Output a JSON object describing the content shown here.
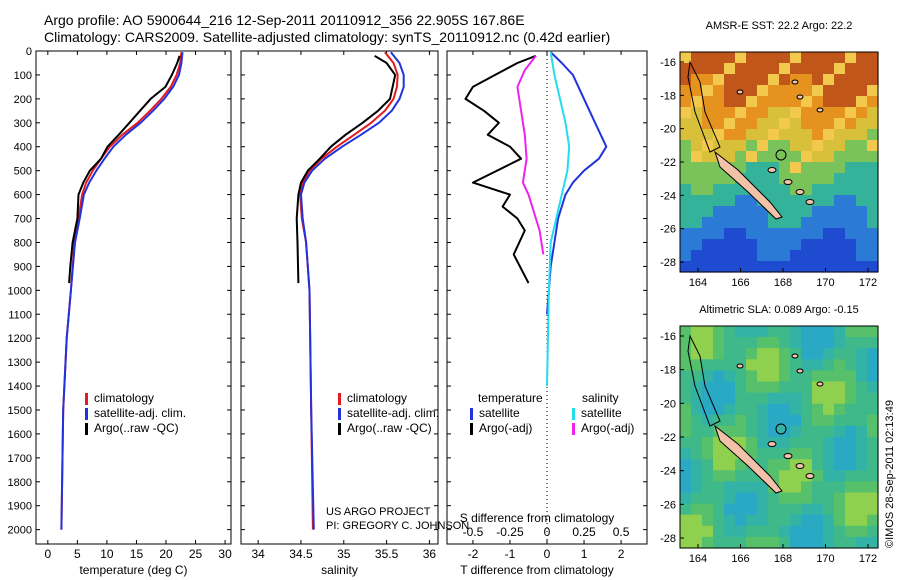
{
  "header": {
    "line1": "Argo profile: AO 5900644_216 12-Sep-2011 20110912_356 22.905S 167.86E",
    "line2": "Climatology: CARS2009. Satellite-adjusted climatology: synTS_20110912.nc (0.42d earlier)"
  },
  "colors": {
    "climatology": "#e41a1c",
    "satellite": "#2233dd",
    "argo": "#000000",
    "sat_salinity": "#22ddee",
    "argo_salinity": "#ee22ee"
  },
  "chart_data": [
    {
      "type": "line",
      "id": "temperature",
      "xlabel": "temperature (deg C)",
      "ylabel": "",
      "xlim": [
        -2,
        31
      ],
      "ylim": [
        0,
        2060
      ],
      "x_ticks": [
        "0",
        "5",
        "10",
        "15",
        "20",
        "25",
        "30"
      ],
      "x_tick_values": [
        0,
        5,
        10,
        15,
        20,
        25,
        30
      ],
      "y_ticks": [
        "0",
        "100",
        "200",
        "300",
        "400",
        "500",
        "600",
        "700",
        "800",
        "900",
        "1000",
        "1100",
        "1200",
        "1300",
        "1400",
        "1500",
        "1600",
        "1700",
        "1800",
        "1900",
        "2000"
      ],
      "y_tick_values": [
        0,
        100,
        200,
        300,
        400,
        500,
        600,
        700,
        800,
        900,
        1000,
        1100,
        1200,
        1300,
        1400,
        1500,
        1600,
        1700,
        1800,
        1900,
        2000
      ],
      "legend": [
        "climatology",
        "satellite-adj. clim.",
        "Argo(..raw -QC)"
      ],
      "series": [
        {
          "name": "climatology",
          "x": [
            22.6,
            22.4,
            21.8,
            20.8,
            19.2,
            17.3,
            15.2,
            12.6,
            10.5,
            9.0,
            7.6,
            6.5,
            5.8,
            5.2,
            4.5,
            3.9,
            3.2,
            2.6,
            2.3
          ],
          "y": [
            5,
            50,
            100,
            150,
            200,
            250,
            300,
            350,
            400,
            450,
            500,
            550,
            600,
            700,
            800,
            1000,
            1200,
            1500,
            2000
          ]
        },
        {
          "name": "satellite-adj. clim.",
          "x": [
            22.8,
            22.6,
            22.2,
            21.2,
            19.7,
            17.8,
            15.7,
            13.2,
            11.1,
            9.6,
            8.2,
            7.0,
            6.1,
            5.4,
            4.6,
            3.9,
            3.2,
            2.6,
            2.3
          ],
          "y": [
            5,
            50,
            100,
            150,
            200,
            250,
            300,
            350,
            400,
            450,
            500,
            550,
            600,
            700,
            800,
            1000,
            1200,
            1500,
            2000
          ]
        },
        {
          "name": "Argo(..raw -QC)",
          "x": [
            22.3,
            21.9,
            21.0,
            19.9,
            17.4,
            15.6,
            13.8,
            12.0,
            10.1,
            9.0,
            7.1,
            6.0,
            5.2,
            5.0,
            4.2,
            3.8,
            3.6
          ],
          "y": [
            20,
            50,
            100,
            150,
            200,
            250,
            300,
            350,
            400,
            450,
            500,
            550,
            600,
            700,
            800,
            900,
            970
          ]
        }
      ]
    },
    {
      "type": "line",
      "id": "salinity",
      "xlabel": "salinity",
      "xlim": [
        33.8,
        36.1
      ],
      "ylim": [
        0,
        2060
      ],
      "x_ticks": [
        "34",
        "34.5",
        "35",
        "35.5",
        "36"
      ],
      "x_tick_values": [
        34,
        34.5,
        35,
        35.5,
        36
      ],
      "legend": [
        "climatology",
        "satellite-adj. clim.",
        "Argo(..raw -QC)"
      ],
      "series": [
        {
          "name": "climatology",
          "x": [
            35.48,
            35.58,
            35.63,
            35.62,
            35.58,
            35.48,
            35.32,
            35.12,
            34.92,
            34.74,
            34.6,
            34.52,
            34.49,
            34.51,
            34.56,
            34.6,
            34.62,
            34.64
          ],
          "y": [
            5,
            50,
            100,
            150,
            200,
            250,
            300,
            350,
            400,
            450,
            500,
            550,
            600,
            700,
            800,
            1000,
            1500,
            2000
          ]
        },
        {
          "name": "satellite-adj. clim.",
          "x": [
            35.55,
            35.65,
            35.7,
            35.7,
            35.65,
            35.56,
            35.41,
            35.2,
            34.98,
            34.78,
            34.63,
            34.54,
            34.5,
            34.52,
            34.56,
            34.6,
            34.62,
            34.65
          ],
          "y": [
            5,
            50,
            100,
            150,
            200,
            250,
            300,
            350,
            400,
            450,
            500,
            550,
            600,
            700,
            800,
            1000,
            1500,
            2000
          ]
        },
        {
          "name": "Argo(..raw -QC)",
          "x": [
            35.36,
            35.5,
            35.6,
            35.57,
            35.54,
            35.4,
            35.22,
            35.02,
            34.85,
            34.72,
            34.58,
            34.5,
            34.47,
            34.45,
            34.46,
            34.47
          ],
          "y": [
            20,
            50,
            100,
            150,
            200,
            250,
            300,
            350,
            400,
            450,
            500,
            550,
            600,
            700,
            800,
            970
          ]
        }
      ]
    },
    {
      "type": "line",
      "id": "difference",
      "xlabel_top": "S difference from climatology",
      "xlabel_bottom": "T difference from climatology",
      "xlim": [
        -2.7,
        2.7
      ],
      "ylim": [
        0,
        2060
      ],
      "x_ticks_bottom": [
        "-2",
        "-1",
        "0",
        "1",
        "2"
      ],
      "x_tick_values_bottom": [
        -2,
        -1,
        0,
        1,
        2
      ],
      "x_ticks_top": [
        "-0.5",
        "-0.25",
        "0",
        "0.25",
        "0.5"
      ],
      "x_tick_values_top": [
        -2,
        -1,
        0,
        1,
        2
      ],
      "legend_temperature": {
        "title": "temperature",
        "items": [
          "satellite",
          "Argo(-adj)"
        ]
      },
      "legend_salinity": {
        "title": "salinity",
        "items": [
          "satellite",
          "Argo(-adj)"
        ]
      },
      "series": [
        {
          "name": "temperature satellite",
          "x": [
            0.1,
            0.4,
            0.7,
            1.0,
            1.3,
            1.6,
            1.4,
            1.0,
            0.7,
            0.5,
            0.3,
            0.2,
            0.1,
            0.05,
            0.0
          ],
          "y": [
            5,
            50,
            100,
            200,
            300,
            400,
            450,
            500,
            550,
            600,
            700,
            800,
            900,
            1000,
            1100
          ]
        },
        {
          "name": "temperature Argo(-adj)",
          "x": [
            -0.3,
            -0.8,
            -1.4,
            -2.0,
            -2.2,
            -1.7,
            -1.3,
            -1.6,
            -1.0,
            -0.7,
            -2.0,
            -1.0,
            -1.2,
            -0.8,
            -0.6,
            -0.9,
            -0.5
          ],
          "y": [
            20,
            50,
            100,
            150,
            200,
            250,
            300,
            350,
            400,
            450,
            550,
            600,
            650,
            700,
            750,
            850,
            970
          ]
        },
        {
          "name": "salinity satellite",
          "x": [
            0.1,
            0.2,
            0.35,
            0.5,
            0.6,
            0.55,
            0.4,
            0.25,
            0.1,
            0.05,
            0.0
          ],
          "y": [
            5,
            100,
            200,
            300,
            400,
            500,
            600,
            700,
            800,
            1000,
            1400
          ]
        },
        {
          "name": "salinity Argo(-adj)",
          "x": [
            -0.3,
            -0.6,
            -0.8,
            -0.7,
            -0.6,
            -0.55,
            -0.65,
            -0.5,
            -0.4,
            -0.2,
            -0.1
          ],
          "y": [
            20,
            80,
            150,
            250,
            350,
            450,
            550,
            600,
            650,
            750,
            850
          ]
        }
      ]
    }
  ],
  "maps": {
    "sst": {
      "title": "AMSR-E SST: 22.2 Argo: 22.2",
      "x_ticks": [
        "164",
        "166",
        "168",
        "170",
        "172"
      ],
      "y_ticks": [
        "-16",
        "-18",
        "-20",
        "-22",
        "-24",
        "-26",
        "-28"
      ]
    },
    "sla": {
      "title": "Altimetric SLA: 0.089 Argo: -0.15",
      "x_ticks": [
        "164",
        "166",
        "168",
        "170",
        "172"
      ],
      "y_ticks": [
        "-16",
        "-18",
        "-20",
        "-22",
        "-24",
        "-26",
        "-28"
      ]
    }
  },
  "credit": {
    "line1": "US ARGO PROJECT",
    "line2": "PI: GREGORY C. JOHNSON"
  },
  "side_label": "©IMOS 28-Sep-2011 02:13:49"
}
